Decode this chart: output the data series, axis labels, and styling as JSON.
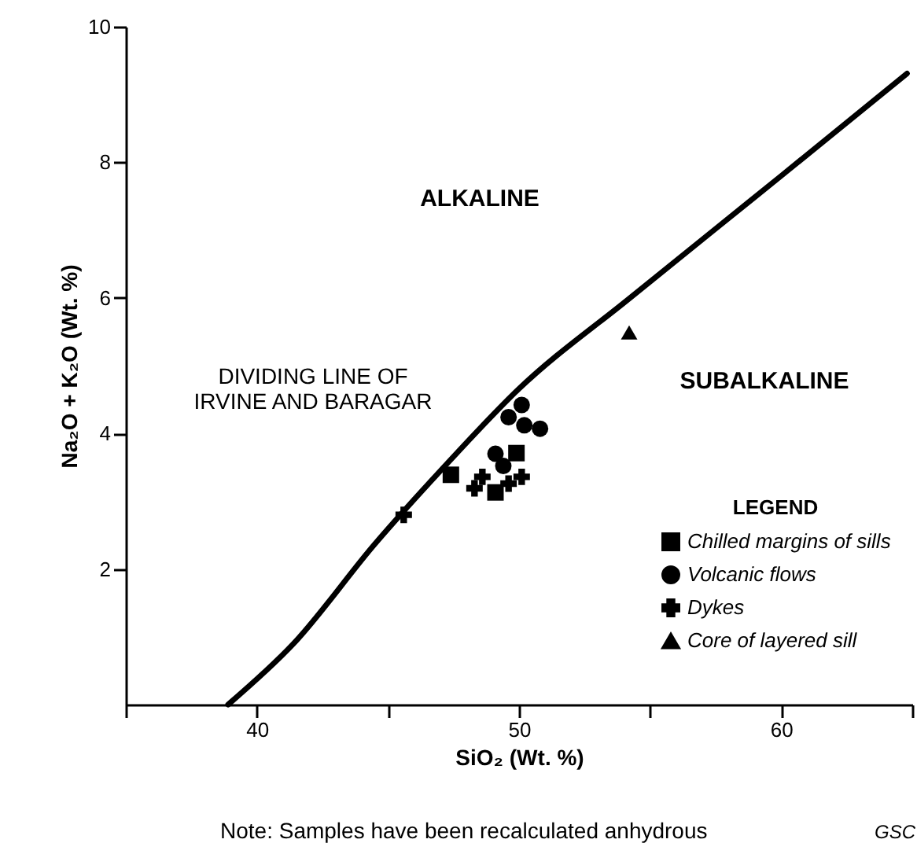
{
  "chart_data": {
    "type": "scatter",
    "xlabel": "SiO₂ (Wt. %)",
    "ylabel": "Na₂O + K₂O (Wt. %)",
    "legend_title": "LEGEND",
    "legend": "bottom right",
    "xlim": [
      35,
      65
    ],
    "xticks": [
      {
        "value": 35,
        "label": null
      },
      40,
      {
        "value": 45,
        "label": null
      },
      50,
      {
        "value": 55,
        "label": null
      },
      60,
      {
        "value": 65,
        "label": null
      }
    ],
    "ylim": [
      0,
      10
    ],
    "yticks": [
      2,
      4,
      6,
      8,
      10
    ],
    "grid": false,
    "series": [
      {
        "type": "line",
        "color": "#000000",
        "marker": "none",
        "line_style": "solid",
        "x": [
          38.9,
          41.4,
          44.5,
          47.1,
          50.0,
          54.2,
          60.0,
          64.8
        ],
        "values": [
          0,
          0.9,
          2.37,
          3.49,
          4.66,
          5.99,
          7.8,
          9.31
        ]
      },
      {
        "name": "Chilled margins of sills",
        "color": "#000000",
        "marker": "square",
        "x": [
          47.4,
          49.9,
          49.1
        ],
        "values": [
          3.39,
          3.71,
          3.13
        ]
      },
      {
        "name": "Volcanic flows",
        "color": "#000000",
        "marker": "circle",
        "x": [
          50.1,
          49.6,
          50.2,
          50.8,
          49.1,
          49.4
        ],
        "values": [
          4.42,
          4.24,
          4.12,
          4.07,
          3.7,
          3.52
        ]
      },
      {
        "name": "Dykes",
        "color": "#000000",
        "marker": "cross",
        "x": [
          45.6,
          48.3,
          48.6,
          49.6,
          50.1
        ],
        "values": [
          2.8,
          3.19,
          3.36,
          3.26,
          3.36
        ]
      },
      {
        "name": "Core of layered sill",
        "color": "#000000",
        "marker": "triangle",
        "x": [
          54.2
        ],
        "values": [
          5.49
        ]
      }
    ],
    "annotations": [
      "ALKALINE",
      "SUBALKALINE",
      "DIVIDING LINE OF\nIRVINE AND BARAGAR",
      "Note: Samples have been recalculated anhydrous",
      "GSC"
    ]
  }
}
